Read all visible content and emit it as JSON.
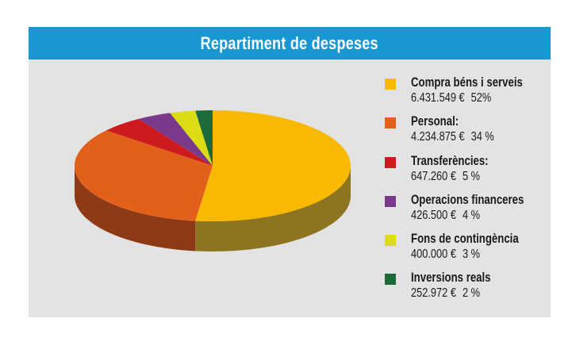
{
  "chart_data": {
    "type": "pie",
    "title": "Repartiment de despeses",
    "slices": [
      {
        "name": "Compra béns i serveis",
        "amount": "6.431.549 €",
        "percent_label": "52%",
        "value": 52,
        "color": "#f8b900",
        "side_color": "#8c7420"
      },
      {
        "name": "Personal:",
        "amount": "4.234.875 €",
        "percent_label": "34 %",
        "value": 34,
        "color": "#e2601a",
        "side_color": "#8e3a16"
      },
      {
        "name": "Transferències:",
        "amount": "647.260 €",
        "percent_label": "5 %",
        "value": 5,
        "color": "#cc1a1e",
        "side_color": "#7a1214"
      },
      {
        "name": "Operacions financeres",
        "amount": "426.500 €",
        "percent_label": "4 %",
        "value": 4,
        "color": "#7a3a8c",
        "side_color": "#4a2258"
      },
      {
        "name": "Fons de contingència",
        "amount": "400.000 €",
        "percent_label": "3 %",
        "value": 3,
        "color": "#dcdc14",
        "side_color": "#86860c"
      },
      {
        "name": "Inversions reals",
        "amount": "252.972 €",
        "percent_label": "2 %",
        "value": 2,
        "color": "#1d6a3a",
        "side_color": "#123f23"
      }
    ],
    "legend_position": "right"
  }
}
